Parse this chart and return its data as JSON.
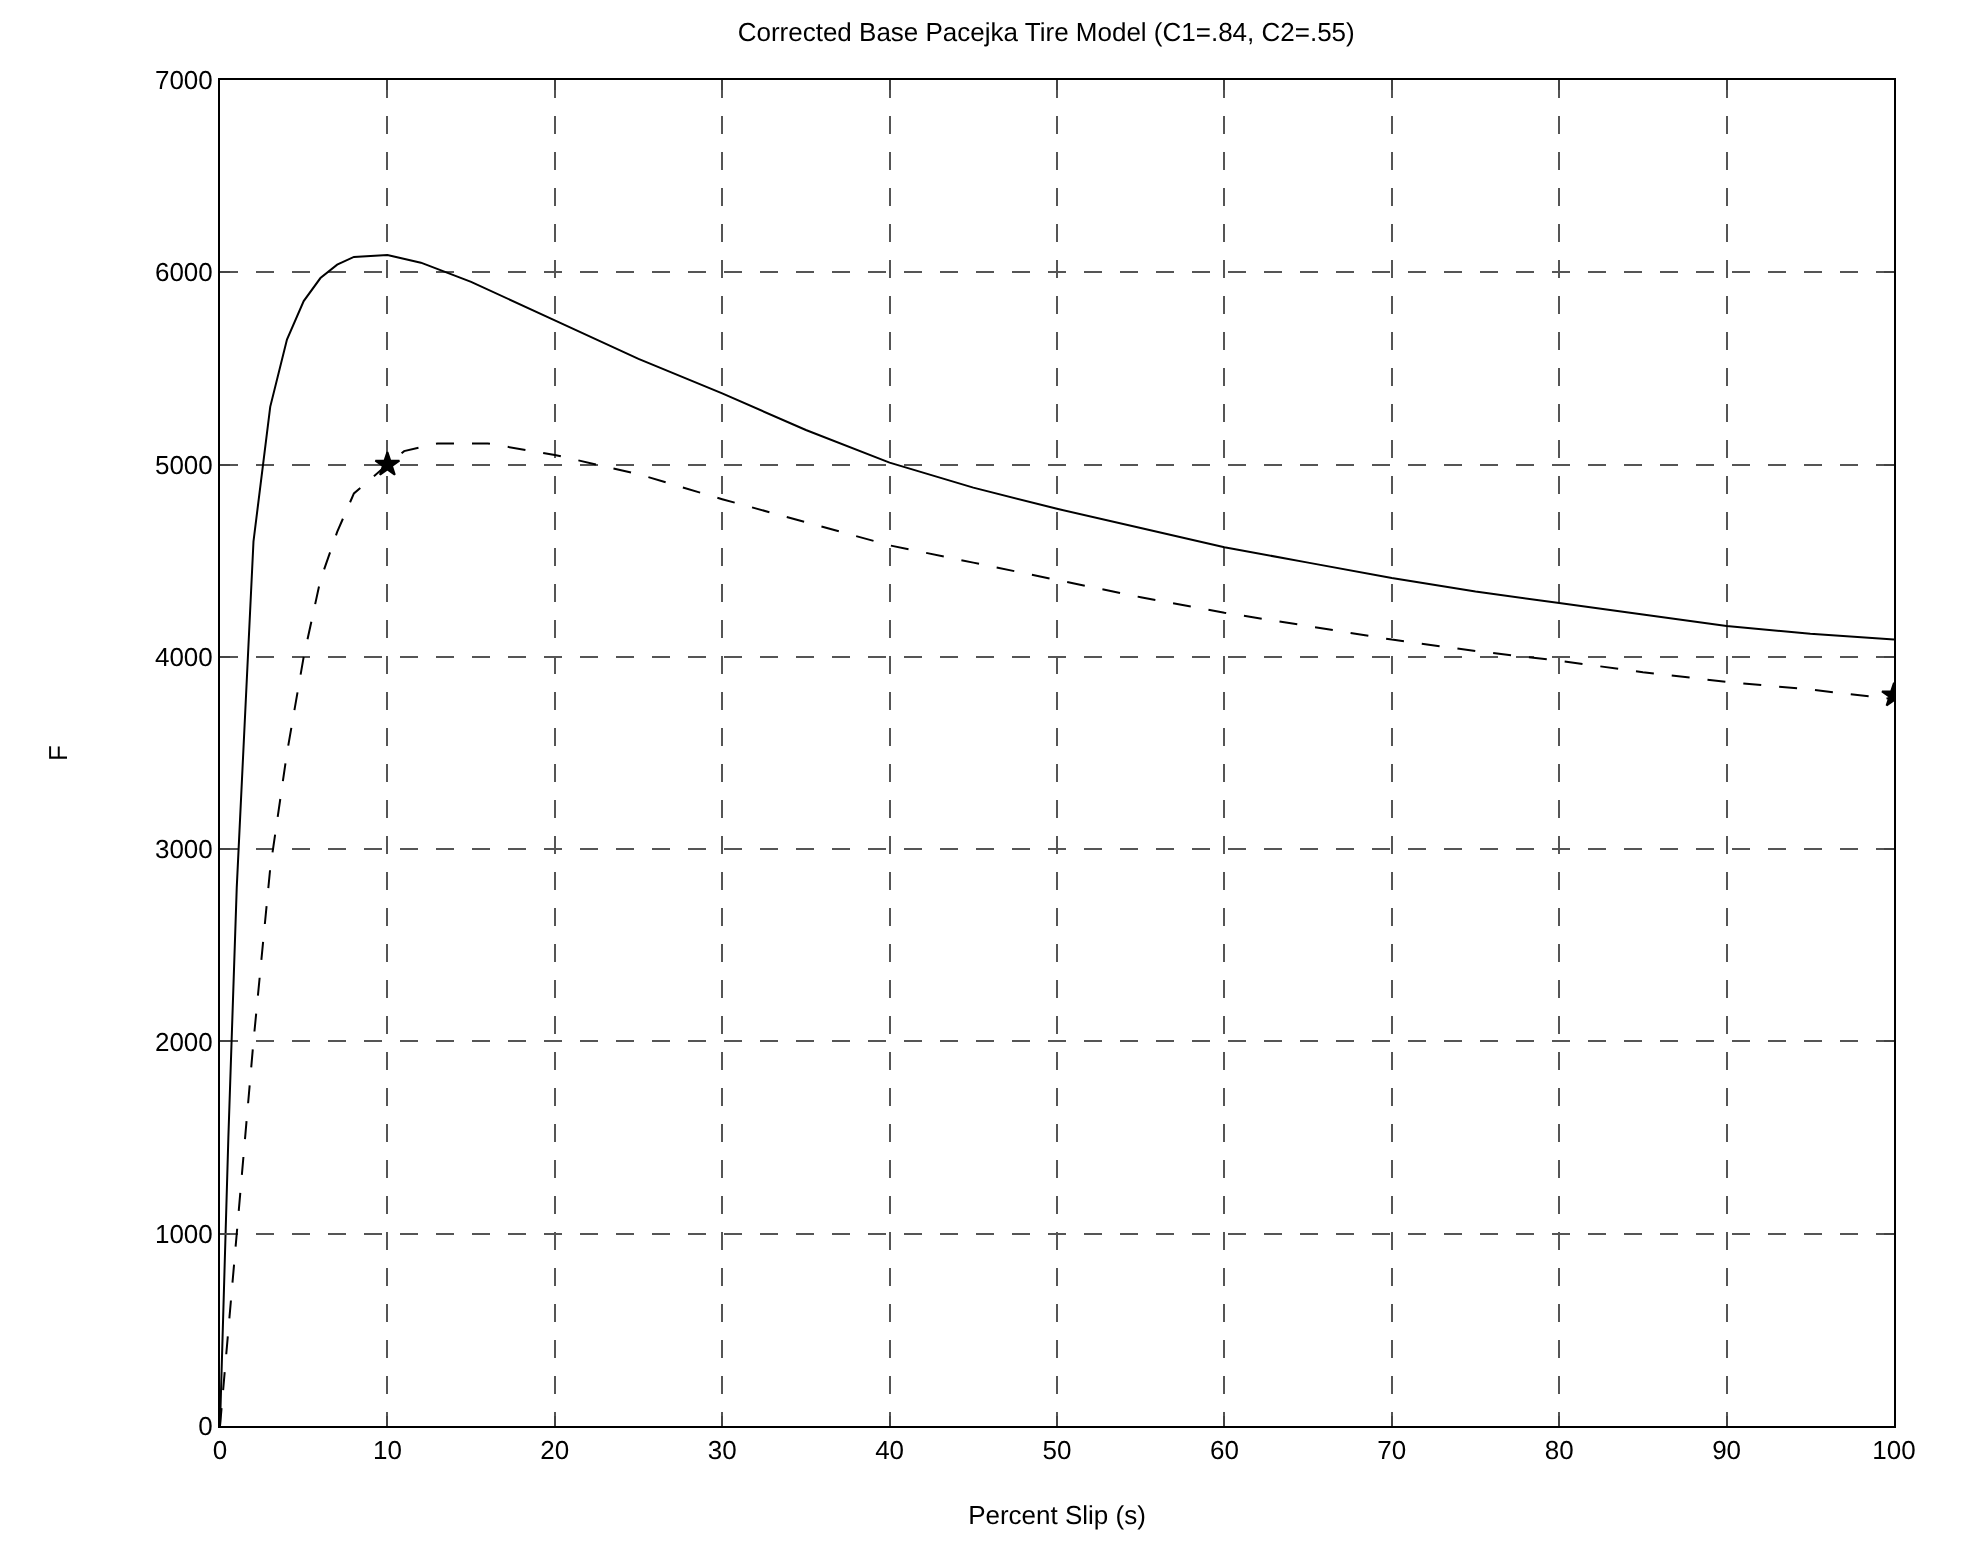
{
  "chart_data": {
    "type": "line",
    "title": "Corrected Base Pacejka Tire Model (C1=.84, C2=.55)",
    "xlabel": "Percent Slip (s)",
    "ylabel": "F",
    "xlim": [
      0,
      100
    ],
    "xticks": [
      0,
      10,
      20,
      30,
      40,
      50,
      60,
      70,
      80,
      90,
      100
    ],
    "ylim": [
      0,
      7000
    ],
    "yticks": [
      0,
      1000,
      2000,
      3000,
      4000,
      5000,
      6000,
      7000
    ],
    "grid": true,
    "series": [
      {
        "color": "#000000",
        "line_style": "solid",
        "marker": "none",
        "x": [
          0,
          0.5,
          1,
          2,
          3,
          4,
          5,
          6,
          7,
          8,
          10,
          12,
          15,
          20,
          25,
          30,
          35,
          40,
          45,
          50,
          55,
          60,
          65,
          70,
          75,
          80,
          85,
          90,
          95,
          100
        ],
        "values": [
          0,
          1500,
          2800,
          4600,
          5300,
          5650,
          5850,
          5970,
          6040,
          6080,
          6090,
          6050,
          5950,
          5750,
          5550,
          5370,
          5180,
          5010,
          4880,
          4770,
          4670,
          4570,
          4490,
          4410,
          4340,
          4280,
          4220,
          4160,
          4120,
          4090
        ]
      },
      {
        "color": "#000000",
        "line_style": "dashed",
        "marker": "none",
        "x": [
          0,
          1,
          2,
          3,
          4,
          5,
          6,
          7,
          8,
          10,
          11,
          13,
          16,
          20,
          25,
          30,
          35,
          40,
          45,
          50,
          55,
          60,
          65,
          70,
          75,
          80,
          85,
          90,
          95,
          100
        ],
        "values": [
          0,
          1000,
          2000,
          2900,
          3500,
          4000,
          4400,
          4650,
          4850,
          5000,
          5070,
          5110,
          5110,
          5050,
          4950,
          4820,
          4700,
          4580,
          4490,
          4400,
          4310,
          4230,
          4160,
          4090,
          4030,
          3980,
          3920,
          3870,
          3830,
          3780
        ]
      },
      {
        "type": "scatter",
        "color": "#000000",
        "marker": "star",
        "x": [
          10,
          100
        ],
        "values": [
          5000,
          3800
        ]
      }
    ]
  }
}
